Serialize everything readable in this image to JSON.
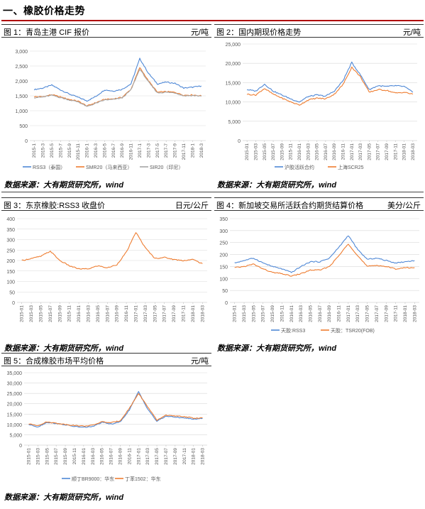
{
  "page": {
    "section_title": "一、橡胶价格走势",
    "source_note": "数据来源：大有期货研究所，wind"
  },
  "colors": {
    "blue": "#4f88d6",
    "orange": "#ee7d31",
    "gray": "#a5a5a5",
    "grid": "#d9d9d9",
    "axis": "#bfbfbf",
    "text": "#595959",
    "accent": "#b00000"
  },
  "charts": [
    {
      "id": "chart1",
      "caption": "图 1：青岛主港 CIF 报价",
      "unit": "元/吨",
      "type": "line",
      "ylim": [
        0,
        3000
      ],
      "yticks": [
        "0",
        "500",
        "1,000",
        "1,500",
        "2,000",
        "2,500",
        "3,000"
      ],
      "xticks": [
        "2015-1",
        "2015-3",
        "2015-5",
        "2015-7",
        "2015-9",
        "2015-11",
        "2016-1",
        "2016-3",
        "2016-5",
        "2016-7",
        "2016-9",
        "2016-11",
        "2017-1",
        "2017-3",
        "2017-5",
        "2017-7",
        "2017-9",
        "2017-11",
        "2018-1",
        "2018-3"
      ],
      "legend": [
        "RSS3（泰国）",
        "SMR20（马来西亚）",
        "SIR20（印尼）"
      ]
    },
    {
      "id": "chart2",
      "caption": "图 2：国内期现价格走势",
      "unit": "元/吨",
      "type": "line",
      "ylim": [
        0,
        25000
      ],
      "yticks": [
        "0",
        "5,000",
        "10,000",
        "15,000",
        "20,000",
        "25,000"
      ],
      "xticks": [
        "2015-01",
        "2015-03",
        "2015-05",
        "2015-07",
        "2015-09",
        "2015-11",
        "2016-01",
        "2016-03",
        "2016-05",
        "2016-07",
        "2016-09",
        "2016-11",
        "2017-01",
        "2017-03",
        "2017-05",
        "2017-07",
        "2017-09",
        "2017-11",
        "2018-01",
        "2018-03"
      ],
      "legend": [
        "沪胶活跃合约",
        "上海SCR25"
      ]
    },
    {
      "id": "chart3",
      "caption": "图 3：东京橡胶:RSS3 收盘价",
      "unit": "日元/公斤",
      "type": "line",
      "ylim": [
        0,
        400
      ],
      "yticks": [
        "0",
        "50",
        "100",
        "150",
        "200",
        "250",
        "300",
        "350",
        "400"
      ],
      "xticks": [
        "2015-01",
        "2015-03",
        "2015-05",
        "2015-07",
        "2015-09",
        "2015-11",
        "2016-01",
        "2016-03",
        "2016-05",
        "2016-07",
        "2016-09",
        "2016-11",
        "2017-01",
        "2017-03",
        "2017-05",
        "2017-07",
        "2017-09",
        "2017-11",
        "2018-01",
        "2018-03"
      ],
      "legend": []
    },
    {
      "id": "chart4",
      "caption": "图 4：新加坡交易所活跃合约期货结算价格",
      "unit": "美分/公斤",
      "type": "line",
      "ylim": [
        0,
        350
      ],
      "yticks": [
        "0",
        "50",
        "100",
        "150",
        "200",
        "250",
        "300",
        "350"
      ],
      "xticks": [
        "2015-01",
        "2015-03",
        "2015-05",
        "2015-07",
        "2015-09",
        "2015-11",
        "2016-01",
        "2016-03",
        "2016-05",
        "2016-07",
        "2016-09",
        "2016-11",
        "2017-01",
        "2017-03",
        "2017-05",
        "2017-07",
        "2017-09",
        "2017-11",
        "2018-01",
        "2018-03"
      ],
      "legend": [
        "天胶:RSS3",
        "天胶：TSR20(FOB)"
      ]
    },
    {
      "id": "chart5",
      "caption": "图 5：合成橡胶市场平均价格",
      "unit": "元/吨",
      "type": "line",
      "ylim": [
        0,
        35000
      ],
      "yticks": [
        "0",
        "5,000",
        "10,000",
        "15,000",
        "20,000",
        "25,000",
        "30,000",
        "35,000"
      ],
      "xticks": [
        "2015-01",
        "2015-03",
        "2015-05",
        "2015-07",
        "2015-09",
        "2015-11",
        "2016-01",
        "2016-03",
        "2016-05",
        "2016-07",
        "2016-09",
        "2016-11",
        "2017-01",
        "2017-03",
        "2017-05",
        "2017-07",
        "2017-09",
        "2017-11",
        "2018-01",
        "2018-03"
      ],
      "legend": [
        "顺丁BR9000：华东",
        "丁苯1502：华东"
      ]
    }
  ],
  "chart_data": [
    {
      "type": "line",
      "title": "图 1：青岛主港 CIF 报价",
      "ylabel": "元/吨",
      "ylim": [
        0,
        3000
      ],
      "x": [
        "2015-01",
        "2015-03",
        "2015-05",
        "2015-07",
        "2015-09",
        "2015-11",
        "2016-01",
        "2016-03",
        "2016-05",
        "2016-07",
        "2016-09",
        "2016-11",
        "2017-01",
        "2017-03",
        "2017-05",
        "2017-07",
        "2017-09",
        "2017-11",
        "2018-01",
        "2018-03"
      ],
      "series": [
        {
          "name": "RSS3（泰国）",
          "values": [
            1710,
            1760,
            1860,
            1700,
            1560,
            1450,
            1330,
            1480,
            1700,
            1660,
            1720,
            1900,
            2750,
            2250,
            1900,
            1960,
            1920,
            1760,
            1790,
            1830
          ]
        },
        {
          "name": "SMR20（马来西亚）",
          "values": [
            1470,
            1470,
            1540,
            1460,
            1380,
            1320,
            1160,
            1270,
            1380,
            1400,
            1450,
            1720,
            2450,
            2000,
            1620,
            1640,
            1620,
            1520,
            1530,
            1500
          ]
        },
        {
          "name": "SIR20（印尼）",
          "values": [
            1440,
            1460,
            1520,
            1440,
            1360,
            1300,
            1140,
            1250,
            1360,
            1380,
            1430,
            1700,
            2400,
            1960,
            1600,
            1620,
            1600,
            1500,
            1510,
            1490
          ]
        }
      ]
    },
    {
      "type": "line",
      "title": "图 2：国内期现价格走势",
      "ylabel": "元/吨",
      "ylim": [
        0,
        25000
      ],
      "x": [
        "2015-01",
        "2015-03",
        "2015-05",
        "2015-07",
        "2015-09",
        "2015-11",
        "2016-01",
        "2016-03",
        "2016-05",
        "2016-07",
        "2016-09",
        "2016-11",
        "2017-01",
        "2017-03",
        "2017-05",
        "2017-07",
        "2017-09",
        "2017-11",
        "2018-01",
        "2018-03"
      ],
      "series": [
        {
          "name": "沪胶活跃合约",
          "values": [
            13200,
            12800,
            14600,
            12800,
            11800,
            10800,
            10000,
            11400,
            11800,
            11500,
            12800,
            15500,
            20200,
            17000,
            13200,
            14200,
            14000,
            14200,
            14000,
            12500
          ]
        },
        {
          "name": "上海SCR25",
          "values": [
            12000,
            11800,
            13500,
            12000,
            11000,
            10000,
            9200,
            10500,
            11000,
            10800,
            12000,
            14500,
            19000,
            16500,
            12500,
            13200,
            13000,
            12300,
            12500,
            12000
          ]
        }
      ]
    },
    {
      "type": "line",
      "title": "图 3：东京橡胶:RSS3 收盘价",
      "ylabel": "日元/公斤",
      "ylim": [
        0,
        400
      ],
      "x": [
        "2015-01",
        "2015-03",
        "2015-05",
        "2015-07",
        "2015-09",
        "2015-11",
        "2016-01",
        "2016-03",
        "2016-05",
        "2016-07",
        "2016-09",
        "2016-11",
        "2017-01",
        "2017-03",
        "2017-05",
        "2017-07",
        "2017-09",
        "2017-11",
        "2018-01",
        "2018-03"
      ],
      "series": [
        {
          "name": "",
          "values": [
            200,
            210,
            220,
            245,
            200,
            175,
            160,
            160,
            175,
            165,
            180,
            240,
            335,
            260,
            210,
            215,
            205,
            200,
            205,
            185
          ]
        }
      ]
    },
    {
      "type": "line",
      "title": "图 4：新加坡交易所活跃合约期货结算价格",
      "ylabel": "美分/公斤",
      "ylim": [
        0,
        350
      ],
      "x": [
        "2015-01",
        "2015-03",
        "2015-05",
        "2015-07",
        "2015-09",
        "2015-11",
        "2016-01",
        "2016-03",
        "2016-05",
        "2016-07",
        "2016-09",
        "2016-11",
        "2017-01",
        "2017-03",
        "2017-05",
        "2017-07",
        "2017-09",
        "2017-11",
        "2018-01",
        "2018-03"
      ],
      "series": [
        {
          "name": "天胶:RSS3",
          "values": [
            165,
            175,
            185,
            165,
            150,
            140,
            125,
            150,
            170,
            170,
            185,
            230,
            280,
            220,
            180,
            185,
            175,
            165,
            170,
            175
          ]
        },
        {
          "name": "天胶：TSR20(FOB)",
          "values": [
            145,
            150,
            160,
            140,
            125,
            120,
            110,
            120,
            135,
            135,
            150,
            195,
            245,
            195,
            150,
            155,
            150,
            140,
            145,
            145
          ]
        }
      ]
    },
    {
      "type": "line",
      "title": "图 5：合成橡胶市场平均价格",
      "ylabel": "元/吨",
      "ylim": [
        0,
        35000
      ],
      "x": [
        "2015-01",
        "2015-03",
        "2015-05",
        "2015-07",
        "2015-09",
        "2015-11",
        "2016-01",
        "2016-03",
        "2016-05",
        "2016-07",
        "2016-09",
        "2016-11",
        "2017-01",
        "2017-03",
        "2017-05",
        "2017-07",
        "2017-09",
        "2017-11",
        "2018-01",
        "2018-03"
      ],
      "series": [
        {
          "name": "顺丁BR9000：华东",
          "values": [
            10000,
            8800,
            11000,
            10500,
            9800,
            9000,
            8600,
            9000,
            11000,
            10200,
            11200,
            17000,
            25800,
            17500,
            11500,
            14000,
            13500,
            13200,
            12500,
            13000
          ]
        },
        {
          "name": "丁苯1502：华东",
          "values": [
            10200,
            9500,
            11200,
            10600,
            10000,
            9500,
            9200,
            9600,
            11300,
            10800,
            11800,
            17800,
            25000,
            18500,
            12000,
            14500,
            14000,
            13800,
            13000,
            13200
          ]
        }
      ]
    }
  ]
}
